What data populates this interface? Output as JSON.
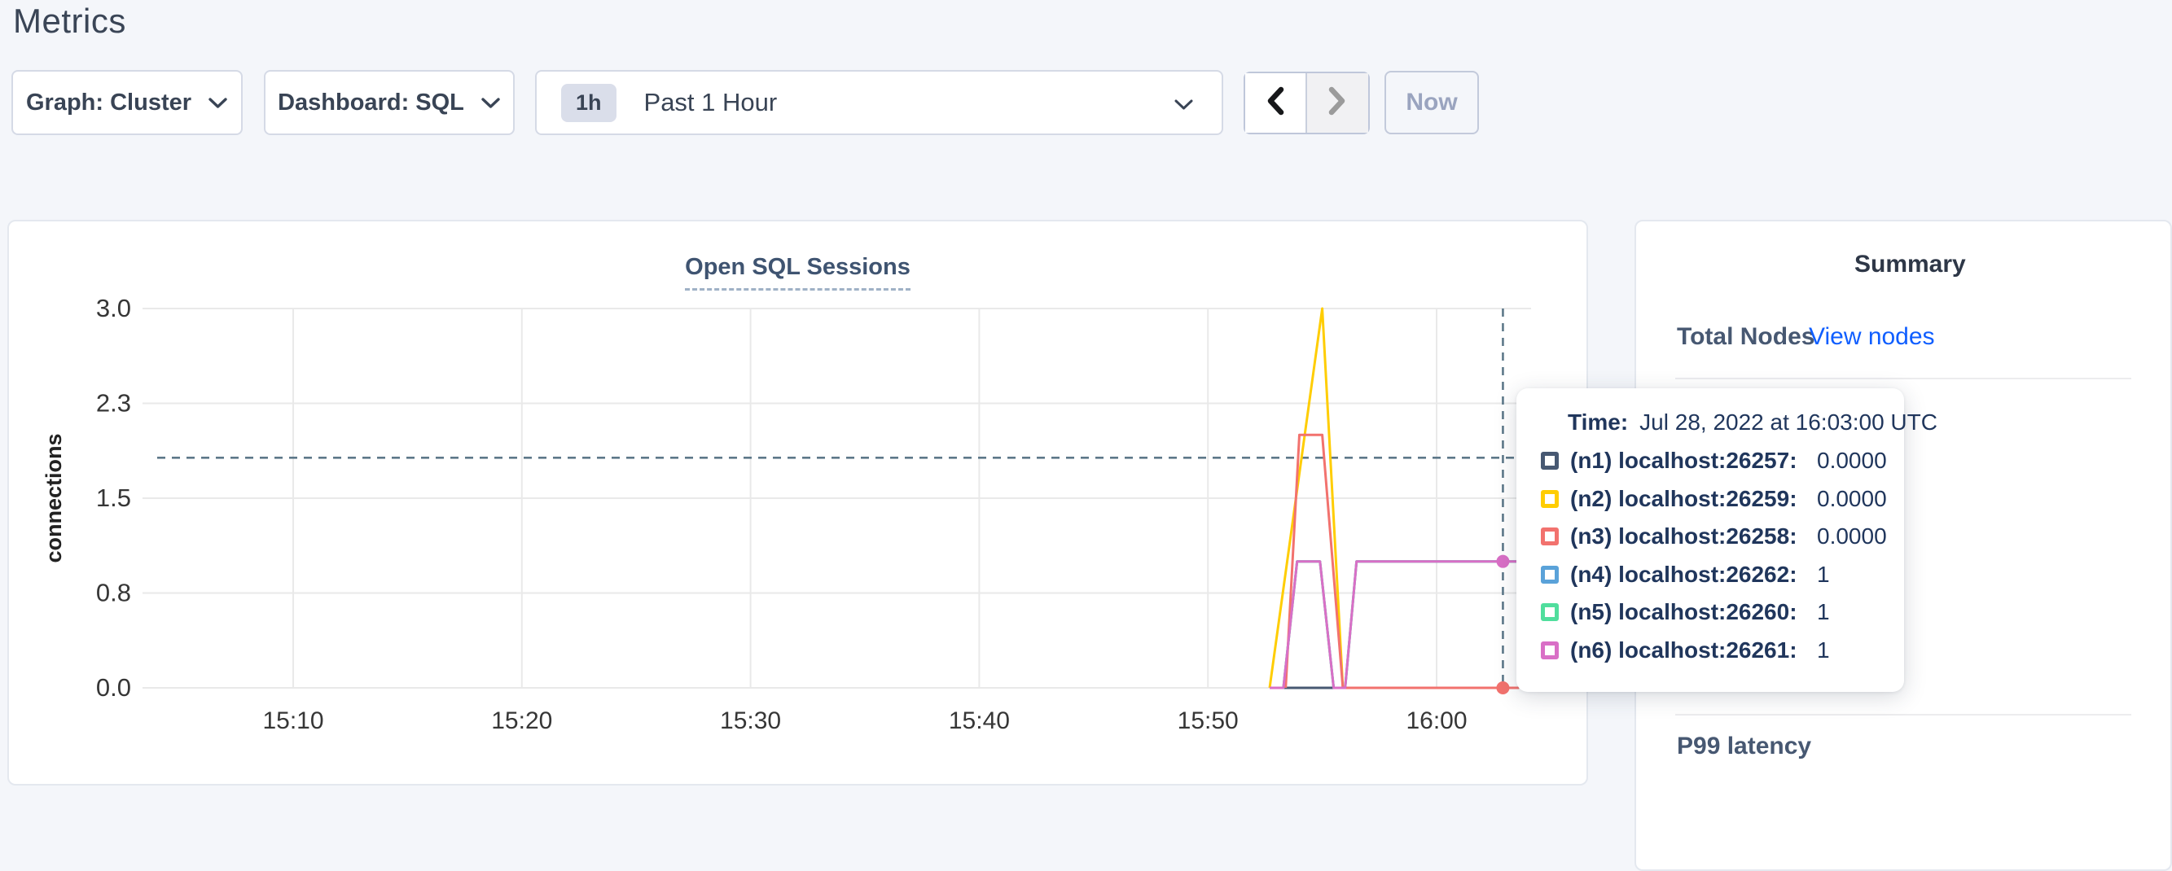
{
  "page": {
    "title": "Metrics"
  },
  "controls": {
    "graph_label": "Graph: Cluster",
    "dashboard_label": "Dashboard: SQL",
    "range_badge": "1h",
    "range_label": "Past 1 Hour",
    "now_label": "Now"
  },
  "colors": {
    "accent_link": "#0f5eff",
    "slate_text": "#394455",
    "navy_text": "#20365c",
    "crosshair": "#5d7889",
    "gridline": "#e9e9e9"
  },
  "chart_data": {
    "type": "line",
    "title": "Open SQL Sessions",
    "ylabel": "connections",
    "ylim": [
      0,
      3
    ],
    "grid": true,
    "y_ticks": [
      {
        "v": 0.0,
        "label": "0.0"
      },
      {
        "v": 0.75,
        "label": "0.8"
      },
      {
        "v": 1.5,
        "label": "1.5"
      },
      {
        "v": 2.25,
        "label": "2.3"
      },
      {
        "v": 3.0,
        "label": "3.0"
      }
    ],
    "x_ticks": [
      {
        "m": 10,
        "label": "15:10"
      },
      {
        "m": 20,
        "label": "15:20"
      },
      {
        "m": 30,
        "label": "15:30"
      },
      {
        "m": 40,
        "label": "15:40"
      },
      {
        "m": 50,
        "label": "15:50"
      },
      {
        "m": 60,
        "label": "16:00"
      }
    ],
    "x_unit": "minutes after 15:00, Jul 28 2022 UTC",
    "series": [
      {
        "name": "(n1) localhost:26257",
        "color": "#475872",
        "points": [
          [
            52.7,
            0
          ],
          [
            63.6,
            0
          ]
        ]
      },
      {
        "name": "(n4) localhost:26262",
        "color": "#5aa2d9",
        "points": [
          [
            52.7,
            0
          ],
          [
            53.3,
            0
          ],
          [
            53.9,
            1
          ],
          [
            54.9,
            1
          ],
          [
            55.5,
            0
          ],
          [
            56.0,
            0
          ],
          [
            56.5,
            1
          ],
          [
            63.6,
            1
          ]
        ]
      },
      {
        "name": "(n5) localhost:26260",
        "color": "#50de9d",
        "points": [
          [
            52.7,
            0
          ],
          [
            53.3,
            0
          ],
          [
            53.9,
            1
          ],
          [
            54.9,
            1
          ],
          [
            55.5,
            0
          ],
          [
            56.0,
            0
          ],
          [
            56.5,
            1
          ],
          [
            63.6,
            1
          ]
        ]
      },
      {
        "name": "(n2) localhost:26259",
        "color": "#ffcd02",
        "points": [
          [
            52.7,
            0
          ],
          [
            55.0,
            3
          ],
          [
            55.9,
            0
          ],
          [
            63.6,
            0
          ]
        ]
      },
      {
        "name": "(n3) localhost:26258",
        "color": "#f2726e",
        "points": [
          [
            53.4,
            0
          ],
          [
            54.0,
            2
          ],
          [
            55.0,
            2
          ],
          [
            55.9,
            0
          ],
          [
            63.6,
            0
          ]
        ]
      },
      {
        "name": "(n6) localhost:26261",
        "color": "#d96fc6",
        "points": [
          [
            52.7,
            0
          ],
          [
            53.3,
            0
          ],
          [
            53.9,
            1
          ],
          [
            54.9,
            1
          ],
          [
            55.5,
            0
          ],
          [
            56.0,
            0
          ],
          [
            56.5,
            1
          ],
          [
            63.6,
            1
          ]
        ]
      }
    ],
    "crosshair": {
      "m": 62.9,
      "hover_value": 1.82,
      "markers": [
        {
          "color": "#d96fc6",
          "v": 1
        },
        {
          "color": "#f2726e",
          "v": 0
        }
      ]
    }
  },
  "tooltip": {
    "time_label": "Time:",
    "time_value": "Jul 28, 2022 at 16:03:00 UTC",
    "rows": [
      {
        "label": "(n1) localhost:26257:",
        "value": "0.0000",
        "color": "#475872"
      },
      {
        "label": "(n2) localhost:26259:",
        "value": "0.0000",
        "color": "#ffcd02"
      },
      {
        "label": "(n3) localhost:26258:",
        "value": "0.0000",
        "color": "#f2726e"
      },
      {
        "label": "(n4) localhost:26262:",
        "value": "1",
        "color": "#5aa2d9"
      },
      {
        "label": "(n5) localhost:26260:",
        "value": "1",
        "color": "#50de9d"
      },
      {
        "label": "(n6) localhost:26261:",
        "value": "1",
        "color": "#d96fc6"
      }
    ]
  },
  "sidebar": {
    "summary_title": "Summary",
    "total_nodes_label": "Total Nodes",
    "view_nodes_link": "View nodes",
    "p99_label": "P99 latency"
  }
}
